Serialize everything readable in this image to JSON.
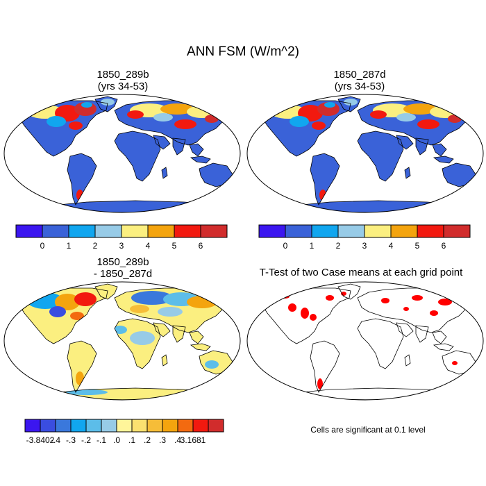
{
  "title": "ANN FSM (W/m^2)",
  "panels": [
    {
      "name": "control",
      "title_line1": "1850_289b",
      "title_line2": "(yrs 34-53)"
    },
    {
      "name": "test",
      "title_line1": "1850_287d",
      "title_line2": "(yrs 34-53)"
    },
    {
      "name": "difference",
      "title_line1": "1850_289b",
      "title_line2": "- 1850_287d"
    },
    {
      "name": "ttest",
      "title_line1": "T-Test of two Case means at each grid point",
      "title_line2": ""
    }
  ],
  "significance_note": "Cells are significant at 0.1 level",
  "colorbar_abs": {
    "colors": [
      "#3b16f0",
      "#3a62d8",
      "#11a6ef",
      "#97cbe7",
      "#fbef80",
      "#f4a40e",
      "#f2190f",
      "#d12c2c"
    ],
    "labels": [
      "0",
      "1",
      "2",
      "3",
      "4",
      "5",
      "6"
    ]
  },
  "colorbar_diff": {
    "colors": [
      "#3b16f0",
      "#3a4de0",
      "#3a78dc",
      "#11a6ef",
      "#5cbde9",
      "#97cbe7",
      "#fff59a",
      "#fbe170",
      "#f6bd38",
      "#f4a40e",
      "#f36a10",
      "#f2190f",
      "#d12c2c"
    ],
    "labels": [
      "-3.8402",
      "-.4",
      "-.3",
      "-.2",
      "-.1",
      ".0",
      ".1",
      ".2",
      ".3",
      ".4",
      "3.1681"
    ]
  },
  "colors": {
    "ocean_fill": "#ffffff",
    "land_low_abs": "#3a62d8",
    "land_low_diff": "#fbef80",
    "significant": "#ff0000"
  }
}
